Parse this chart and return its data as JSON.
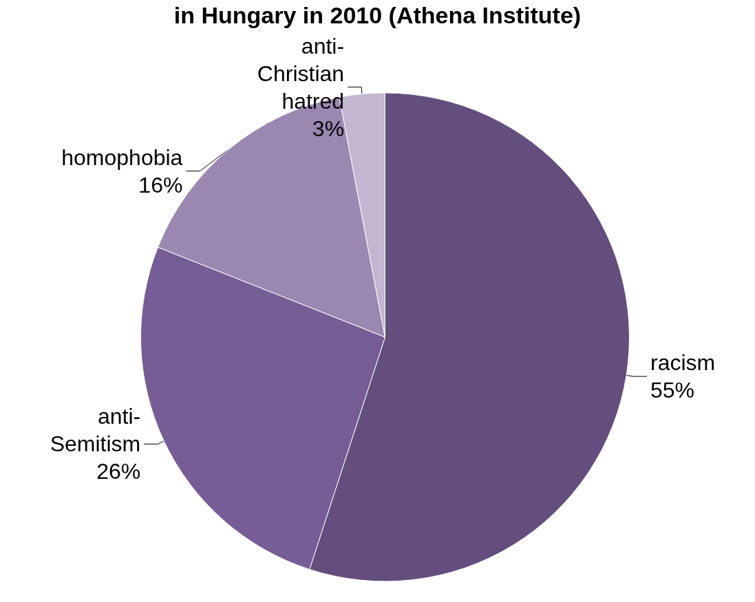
{
  "chart_data": {
    "type": "pie",
    "title": "in Hungary in 2010 (Athena Institute)",
    "categories": [
      "racism",
      "anti-Semitism",
      "homophobia",
      "anti-Christian hatred"
    ],
    "values": [
      55,
      26,
      16,
      3
    ],
    "colors": [
      "#634e7e",
      "#765d96",
      "#9a88b1",
      "#c2b6d0"
    ],
    "value_labels": [
      "55%",
      "26%",
      "16%",
      "3%"
    ]
  }
}
